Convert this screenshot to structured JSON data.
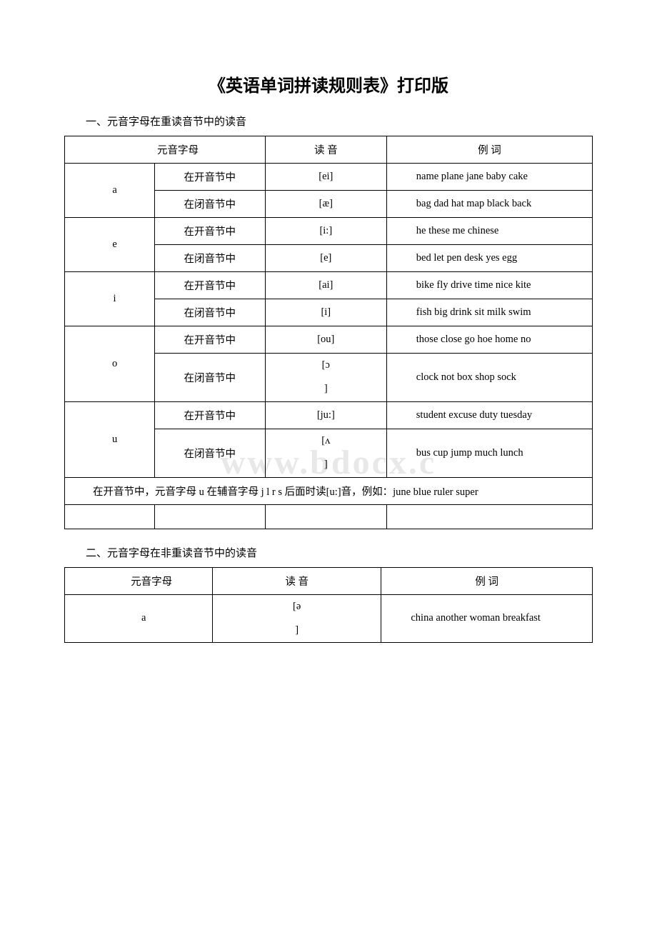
{
  "title": "《英语单词拼读规则表》打印版",
  "watermark": "www.bdocx.c",
  "section1": {
    "label": "一、元音字母在重读音节中的读音",
    "headers": {
      "vowel": "元音字母",
      "sound": "读 音",
      "example": "例 词"
    },
    "rows": [
      {
        "vowel": "a",
        "conds": [
          {
            "cond": "在开音节中",
            "sound": "[ei]",
            "ex": "name plane jane baby cake"
          },
          {
            "cond": "在闭音节中",
            "sound": "[æ]",
            "ex": "bag dad hat map black back"
          }
        ]
      },
      {
        "vowel": "e",
        "conds": [
          {
            "cond": "在开音节中",
            "sound": "[i:]",
            "ex": "he these me chinese"
          },
          {
            "cond": "在闭音节中",
            "sound": "[e]",
            "ex": "bed let pen desk yes egg"
          }
        ]
      },
      {
        "vowel": "i",
        "conds": [
          {
            "cond": "在开音节中",
            "sound": "[ai]",
            "ex": "bike fly drive time nice kite"
          },
          {
            "cond": "在闭音节中",
            "sound": "[i]",
            "ex": "fish big drink sit milk swim"
          }
        ]
      },
      {
        "vowel": "o",
        "conds": [
          {
            "cond": "在开音节中",
            "sound": "[ou]",
            "ex": "those close go hoe home no"
          },
          {
            "cond": "在闭音节中",
            "sound_open": "[",
            "sound_sym": "ɔ",
            "sound_close": "]",
            "ex": "clock not box shop sock"
          }
        ]
      },
      {
        "vowel": "u",
        "conds": [
          {
            "cond": "在开音节中",
            "sound": "[ju:]",
            "ex": "student excuse duty tuesday"
          },
          {
            "cond": "在闭音节中",
            "sound_open": "[",
            "sound_sym": "ʌ",
            "sound_close": "]",
            "ex": "bus cup jump much lunch"
          }
        ]
      }
    ],
    "note": "在开音节中，元音字母 u 在辅音字母 j l r s 后面时读[u:]音，例如：june blue ruler super"
  },
  "section2": {
    "label": "二、元音字母在非重读音节中的读音",
    "headers": {
      "vowel": "元音字母",
      "sound": "读 音",
      "example": "例 词"
    },
    "rows": [
      {
        "vowel": "a",
        "sound_open": "[",
        "sound_sym": "ə",
        "sound_close": "]",
        "ex": "china another woman breakfast"
      }
    ]
  },
  "colors": {
    "border": "#000000",
    "text": "#000000",
    "watermark": "#e8e8e8",
    "bg": "#ffffff"
  }
}
